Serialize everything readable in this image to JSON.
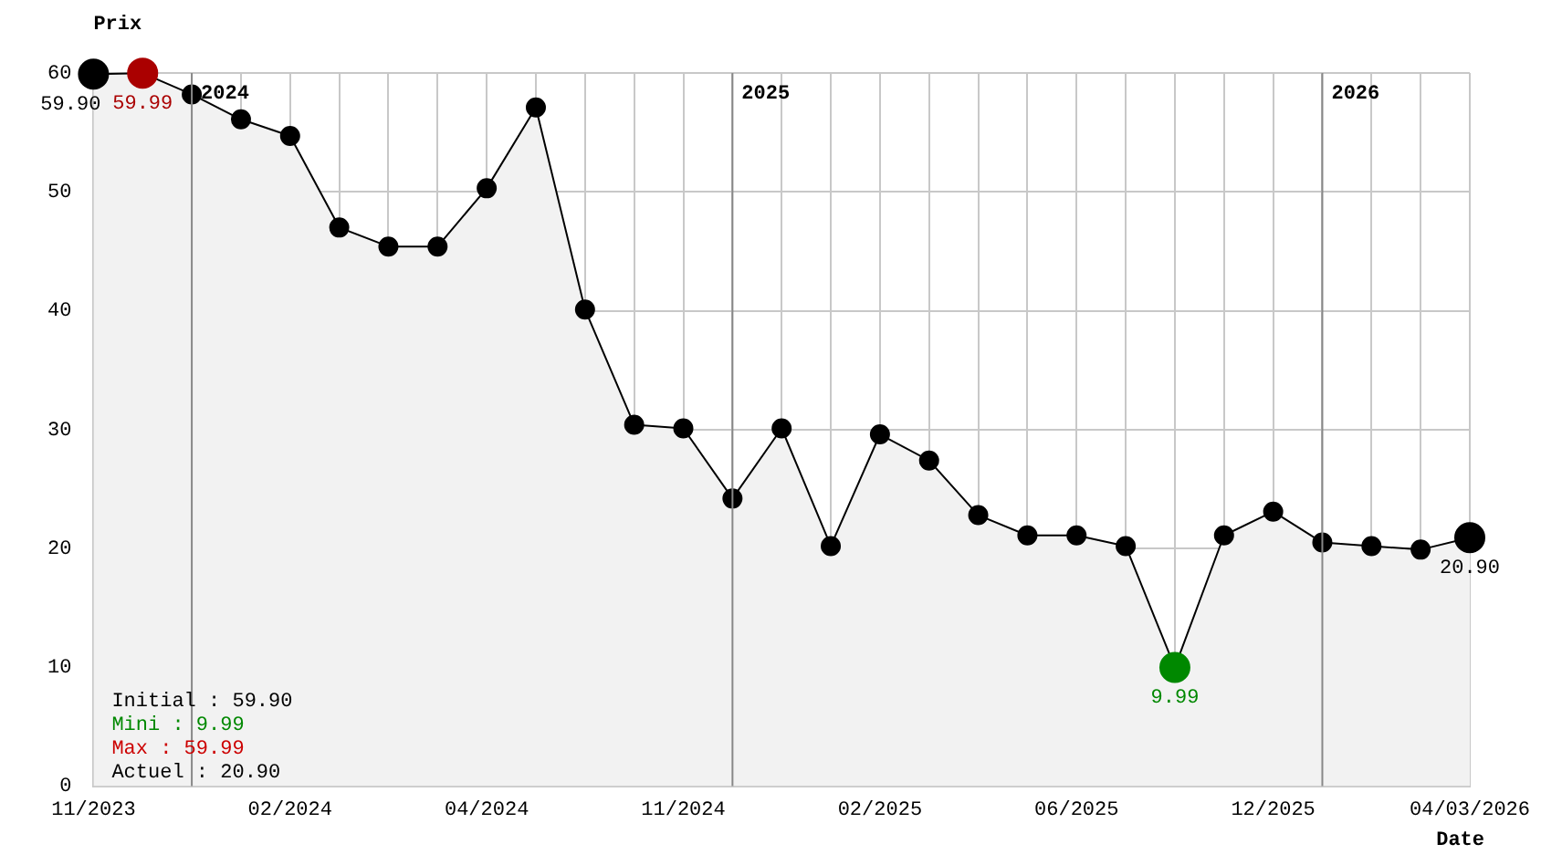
{
  "chart_data": {
    "type": "area",
    "xlabel": "Date",
    "ylabel": "Prix",
    "categories": [
      "11/2023",
      null,
      null,
      null,
      "02/2024",
      null,
      null,
      null,
      "04/2024",
      null,
      null,
      null,
      "11/2024",
      null,
      null,
      null,
      "02/2025",
      null,
      null,
      null,
      "06/2025",
      null,
      null,
      null,
      "12/2025",
      null,
      null,
      null,
      "04/03/2026"
    ],
    "series": [
      {
        "color": "#000000",
        "values": [
          59.9,
          59.99,
          58.2,
          56.1,
          54.7,
          47.0,
          45.4,
          45.4,
          50.3,
          57.1,
          40.1,
          30.4,
          30.1,
          24.2,
          30.1,
          20.2,
          29.6,
          27.4,
          22.8,
          21.1,
          21.1,
          20.2,
          9.99,
          21.1,
          23.1,
          20.5,
          20.2,
          19.9,
          20.9
        ],
        "colors": [
          "#000000",
          "#aa0000",
          "#000000",
          "#000000",
          "#000000",
          "#000000",
          "#000000",
          "#000000",
          "#000000",
          "#000000",
          "#000000",
          "#000000",
          "#000000",
          "#000000",
          "#000000",
          "#000000",
          "#000000",
          "#000000",
          "#000000",
          "#000000",
          "#000000",
          "#000000",
          "#008800",
          "#000000",
          "#000000",
          "#000000",
          "#000000",
          "#000000",
          "#000000"
        ],
        "value_labels": [
          "59.90",
          "59.99",
          null,
          null,
          null,
          null,
          null,
          null,
          null,
          null,
          null,
          null,
          null,
          null,
          null,
          null,
          null,
          null,
          null,
          null,
          null,
          null,
          "9.99",
          null,
          null,
          null,
          null,
          null,
          "20.90"
        ]
      }
    ],
    "ylim": [
      0,
      60
    ],
    "yticks": [
      0,
      10,
      20,
      30,
      40,
      50,
      60
    ],
    "grid": true,
    "marker": "circle",
    "legend": false,
    "annotations": [
      "Initial : 59.90",
      "Mini : 9.99",
      "Max : 59.99",
      "Actuel : 20.90",
      "2024",
      "2025",
      "2026"
    ]
  }
}
